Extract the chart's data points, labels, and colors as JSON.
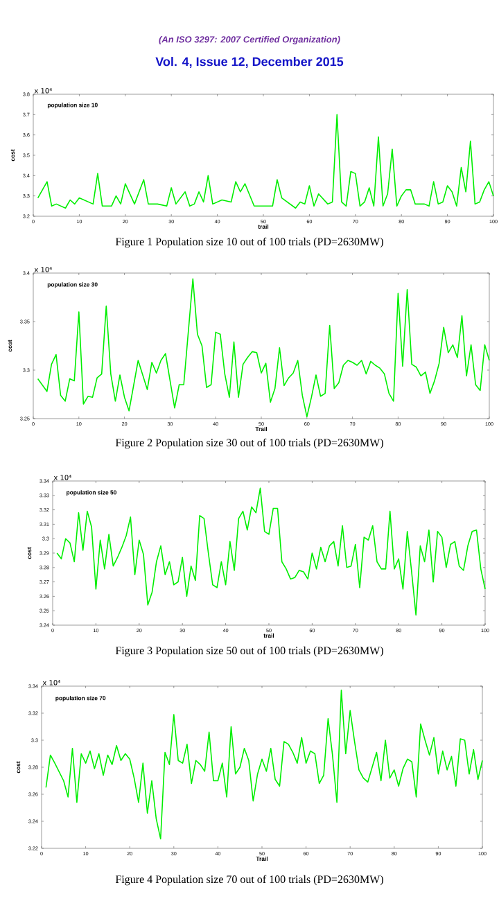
{
  "chart_data": [
    {
      "type": "line",
      "title": "Vol. 4, Issue 12, December 2015",
      "subtitle": "(An ISO 3297: 2007 Certified Organization)",
      "xlabel": "trail",
      "ylabel": "cost",
      "color": "#00ee00",
      "xlim": [
        0,
        100
      ],
      "xticks": [
        0,
        10,
        20,
        30,
        40,
        50,
        60,
        70,
        80,
        90,
        100
      ],
      "ylim": [
        3.2,
        3.8
      ],
      "yticks": [
        3.2,
        3.3,
        3.4,
        3.5,
        3.6,
        3.7,
        3.8
      ],
      "annotations": [
        "population size 10",
        "x 10⁴",
        "Figure 1 Population size 10 out of 100 trials (PD=2630MW)"
      ],
      "x": [
        1,
        3,
        4,
        5,
        7,
        8,
        9,
        10,
        13,
        14,
        15,
        17,
        18,
        19,
        20,
        22,
        24,
        25,
        27,
        29,
        30,
        31,
        33,
        34,
        35,
        36,
        37,
        38,
        39,
        41,
        43,
        44,
        45,
        46,
        48,
        49,
        52,
        53,
        54,
        57,
        58,
        59,
        60,
        61,
        62,
        64,
        65,
        66,
        67,
        68,
        69,
        70,
        71,
        72,
        73,
        74,
        75,
        76,
        77,
        78,
        79,
        80,
        81,
        82,
        83,
        85,
        86,
        87,
        88,
        89,
        90,
        91,
        92,
        93,
        94,
        95,
        96,
        97,
        98,
        99,
        100
      ],
      "values": [
        3.29,
        3.37,
        3.25,
        3.26,
        3.24,
        3.28,
        3.26,
        3.29,
        3.26,
        3.41,
        3.25,
        3.25,
        3.3,
        3.26,
        3.36,
        3.26,
        3.38,
        3.26,
        3.26,
        3.25,
        3.34,
        3.26,
        3.32,
        3.25,
        3.26,
        3.32,
        3.27,
        3.4,
        3.26,
        3.28,
        3.27,
        3.37,
        3.32,
        3.36,
        3.25,
        3.25,
        3.25,
        3.38,
        3.29,
        3.24,
        3.27,
        3.26,
        3.35,
        3.25,
        3.31,
        3.26,
        3.27,
        3.7,
        3.27,
        3.25,
        3.42,
        3.41,
        3.25,
        3.27,
        3.34,
        3.25,
        3.59,
        3.25,
        3.31,
        3.53,
        3.25,
        3.3,
        3.33,
        3.33,
        3.26,
        3.26,
        3.25,
        3.37,
        3.26,
        3.27,
        3.35,
        3.32,
        3.25,
        3.44,
        3.32,
        3.57,
        3.26,
        3.27,
        3.33,
        3.37,
        3.3
      ]
    },
    {
      "type": "line",
      "xlabel": "Trail",
      "ylabel": "cost",
      "color": "#00ee00",
      "xlim": [
        0,
        100
      ],
      "xticks": [
        0,
        10,
        20,
        30,
        40,
        50,
        60,
        70,
        80,
        90,
        100
      ],
      "ylim": [
        3.25,
        3.4
      ],
      "yticks": [
        3.25,
        3.3,
        3.35,
        3.4
      ],
      "annotations": [
        "population size 30",
        "x 10⁴",
        "Figure 2 Population size 30 out of 100 trials (PD=2630MW)"
      ],
      "x": [
        1,
        3,
        4,
        5,
        6,
        7,
        8,
        9,
        10,
        11,
        12,
        13,
        14,
        15,
        16,
        17,
        18,
        19,
        20,
        21,
        23,
        25,
        26,
        27,
        28,
        29,
        30,
        31,
        32,
        33,
        35,
        36,
        37,
        38,
        39,
        40,
        41,
        42,
        43,
        44,
        45,
        46,
        47,
        48,
        49,
        50,
        51,
        52,
        53,
        54,
        55,
        56,
        57,
        58,
        59,
        60,
        61,
        62,
        63,
        64,
        65,
        66,
        67,
        68,
        69,
        70,
        71,
        72,
        73,
        74,
        75,
        76,
        77,
        78,
        79,
        80,
        81,
        82,
        83,
        84,
        85,
        86,
        87,
        88,
        89,
        90,
        91,
        92,
        93,
        94,
        95,
        96,
        97,
        98,
        99,
        100
      ],
      "values": [
        3.291,
        3.278,
        3.306,
        3.316,
        3.274,
        3.268,
        3.291,
        3.289,
        3.36,
        3.265,
        3.273,
        3.272,
        3.292,
        3.296,
        3.366,
        3.296,
        3.268,
        3.295,
        3.272,
        3.258,
        3.31,
        3.28,
        3.308,
        3.297,
        3.31,
        3.317,
        3.289,
        3.261,
        3.285,
        3.285,
        3.394,
        3.337,
        3.325,
        3.282,
        3.285,
        3.339,
        3.337,
        3.296,
        3.272,
        3.329,
        3.272,
        3.306,
        3.313,
        3.319,
        3.318,
        3.297,
        3.307,
        3.267,
        3.281,
        3.323,
        3.284,
        3.292,
        3.297,
        3.31,
        3.274,
        3.252,
        3.272,
        3.295,
        3.273,
        3.276,
        3.346,
        3.281,
        3.287,
        3.305,
        3.31,
        3.308,
        3.305,
        3.31,
        3.296,
        3.309,
        3.305,
        3.302,
        3.296,
        3.276,
        3.268,
        3.379,
        3.304,
        3.383,
        3.306,
        3.303,
        3.294,
        3.298,
        3.276,
        3.289,
        3.307,
        3.344,
        3.318,
        3.326,
        3.313,
        3.356,
        3.294,
        3.326,
        3.285,
        3.279,
        3.326,
        3.31
      ]
    },
    {
      "type": "line",
      "xlabel": "trail",
      "ylabel": "cost",
      "color": "#00ee00",
      "xlim": [
        0,
        100
      ],
      "xticks": [
        0,
        10,
        20,
        30,
        40,
        50,
        60,
        70,
        80,
        90,
        100
      ],
      "ylim": [
        3.24,
        3.34
      ],
      "yticks": [
        3.24,
        3.25,
        3.26,
        3.27,
        3.28,
        3.29,
        3.3,
        3.31,
        3.32,
        3.33,
        3.34
      ],
      "annotations": [
        "population size 50",
        "x 10⁴",
        "Figure 3 Population size 50 out of 100 trials (PD=2630MW)"
      ],
      "x": [
        1,
        2,
        3,
        4,
        5,
        6,
        7,
        8,
        9,
        10,
        11,
        12,
        13,
        14,
        15,
        16,
        17,
        18,
        19,
        20,
        21,
        22,
        23,
        24,
        25,
        26,
        27,
        28,
        29,
        30,
        31,
        32,
        33,
        34,
        35,
        36,
        37,
        38,
        39,
        40,
        41,
        42,
        43,
        44,
        45,
        46,
        47,
        48,
        49,
        50,
        51,
        52,
        53,
        54,
        55,
        56,
        57,
        58,
        59,
        60,
        61,
        62,
        63,
        64,
        65,
        66,
        67,
        68,
        69,
        70,
        71,
        72,
        73,
        74,
        75,
        76,
        77,
        78,
        79,
        80,
        81,
        82,
        83,
        84,
        85,
        86,
        87,
        88,
        89,
        90,
        91,
        92,
        93,
        94,
        95,
        96,
        97,
        98,
        99,
        100
      ],
      "values": [
        3.29,
        3.286,
        3.3,
        3.297,
        3.284,
        3.318,
        3.292,
        3.319,
        3.308,
        3.265,
        3.299,
        3.279,
        3.303,
        3.281,
        3.287,
        3.294,
        3.302,
        3.315,
        3.275,
        3.299,
        3.289,
        3.254,
        3.263,
        3.284,
        3.295,
        3.275,
        3.284,
        3.268,
        3.27,
        3.287,
        3.26,
        3.281,
        3.271,
        3.316,
        3.314,
        3.29,
        3.268,
        3.266,
        3.284,
        3.268,
        3.298,
        3.278,
        3.314,
        3.319,
        3.306,
        3.322,
        3.318,
        3.335,
        3.305,
        3.303,
        3.321,
        3.321,
        3.284,
        3.279,
        3.272,
        3.273,
        3.278,
        3.277,
        3.272,
        3.29,
        3.279,
        3.294,
        3.284,
        3.295,
        3.298,
        3.281,
        3.309,
        3.28,
        3.281,
        3.296,
        3.266,
        3.301,
        3.299,
        3.309,
        3.284,
        3.279,
        3.279,
        3.319,
        3.279,
        3.286,
        3.265,
        3.305,
        3.277,
        3.247,
        3.295,
        3.284,
        3.306,
        3.27,
        3.305,
        3.301,
        3.28,
        3.296,
        3.298,
        3.281,
        3.278,
        3.295,
        3.305,
        3.306,
        3.279,
        3.265
      ]
    },
    {
      "type": "line",
      "xlabel": "Trail",
      "ylabel": "cost",
      "color": "#00ee00",
      "xlim": [
        0,
        100
      ],
      "xticks": [
        0,
        10,
        20,
        30,
        40,
        50,
        60,
        70,
        80,
        90,
        100
      ],
      "ylim": [
        3.22,
        3.34
      ],
      "yticks": [
        3.22,
        3.24,
        3.26,
        3.28,
        3.3,
        3.32,
        3.34
      ],
      "annotations": [
        "population size 70",
        "x 10⁴",
        "Figure 4 Population size 70 out of 100 trials (PD=2630MW)"
      ],
      "x": [
        1,
        2,
        3,
        5,
        6,
        7,
        8,
        9,
        10,
        11,
        12,
        13,
        14,
        15,
        16,
        17,
        18,
        19,
        20,
        21,
        22,
        23,
        24,
        25,
        26,
        27,
        28,
        29,
        30,
        31,
        32,
        33,
        34,
        35,
        36,
        37,
        38,
        39,
        40,
        41,
        42,
        43,
        44,
        45,
        46,
        47,
        48,
        49,
        50,
        51,
        52,
        53,
        54,
        55,
        56,
        57,
        58,
        59,
        60,
        61,
        62,
        63,
        64,
        65,
        66,
        67,
        68,
        69,
        70,
        71,
        72,
        73,
        74,
        75,
        76,
        77,
        78,
        79,
        80,
        81,
        82,
        83,
        84,
        85,
        86,
        87,
        88,
        89,
        90,
        91,
        92,
        93,
        94,
        95,
        96,
        97,
        98,
        99,
        100
      ],
      "values": [
        3.265,
        3.289,
        3.283,
        3.27,
        3.258,
        3.294,
        3.254,
        3.29,
        3.283,
        3.292,
        3.279,
        3.29,
        3.274,
        3.289,
        3.282,
        3.296,
        3.285,
        3.29,
        3.286,
        3.272,
        3.254,
        3.283,
        3.246,
        3.27,
        3.242,
        3.227,
        3.291,
        3.282,
        3.319,
        3.285,
        3.283,
        3.297,
        3.268,
        3.285,
        3.282,
        3.277,
        3.306,
        3.27,
        3.27,
        3.283,
        3.258,
        3.31,
        3.275,
        3.28,
        3.294,
        3.285,
        3.255,
        3.275,
        3.286,
        3.277,
        3.294,
        3.271,
        3.266,
        3.299,
        3.297,
        3.291,
        3.283,
        3.302,
        3.283,
        3.292,
        3.29,
        3.268,
        3.274,
        3.316,
        3.289,
        3.254,
        3.337,
        3.29,
        3.322,
        3.299,
        3.278,
        3.272,
        3.269,
        3.28,
        3.291,
        3.27,
        3.3,
        3.272,
        3.278,
        3.266,
        3.279,
        3.286,
        3.284,
        3.258,
        3.312,
        3.3,
        3.289,
        3.302,
        3.275,
        3.292,
        3.278,
        3.288,
        3.266,
        3.301,
        3.3,
        3.275,
        3.293,
        3.271,
        3.285
      ]
    }
  ]
}
